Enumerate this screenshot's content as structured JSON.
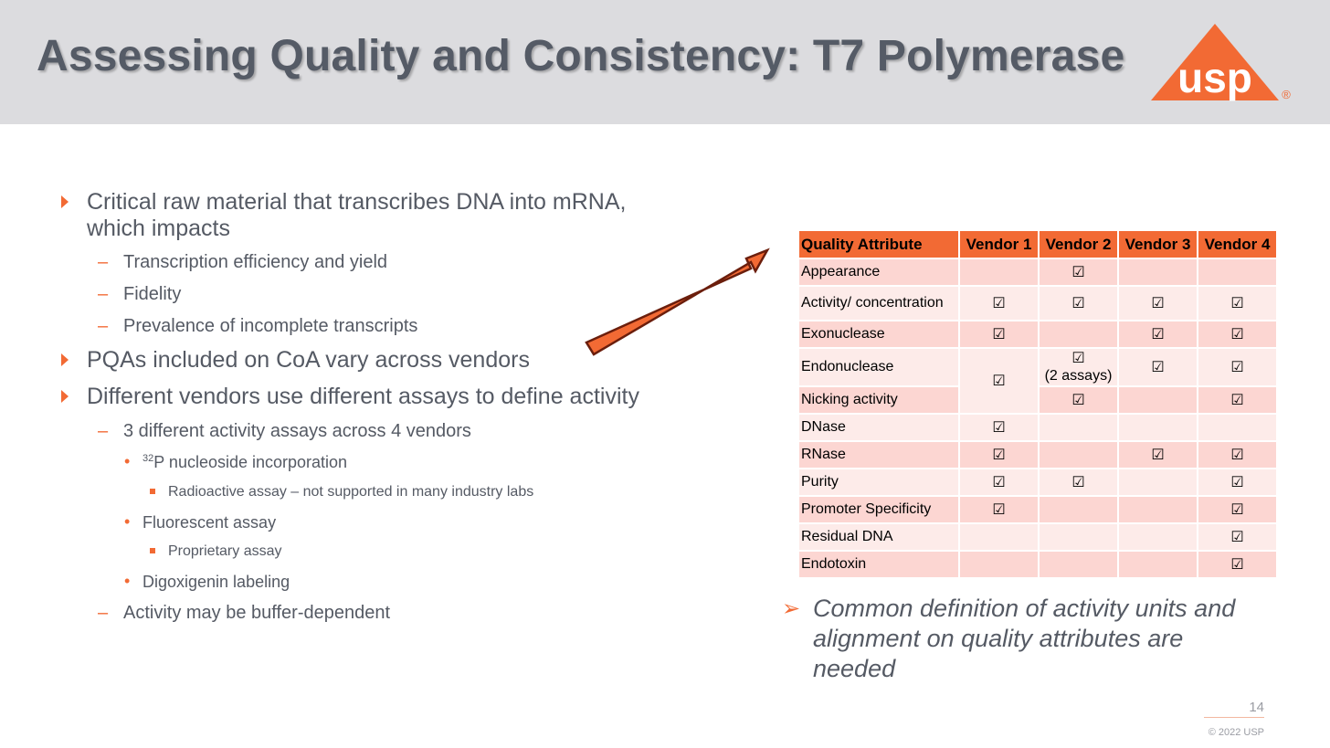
{
  "header": {
    "title": "Assessing Quality and Consistency: T7 Polymerase",
    "logo_text": "usp",
    "logo_mark": "®"
  },
  "bullets": {
    "b1_line1": "Critical raw material that transcribes DNA into mRNA,",
    "b1_line2": "which impacts",
    "b1_sub": [
      "Transcription efficiency and yield",
      "Fidelity",
      "Prevalence of incomplete transcripts"
    ],
    "b2": "PQAs included on CoA vary across vendors",
    "b3": "Different vendors use different assays to define activity",
    "b3_sub1": "3 different activity assays across 4 vendors",
    "assay1_sup": "32",
    "assay1_text": "P nucleoside incorporation",
    "assay1_note": "Radioactive assay – not supported in many industry labs",
    "assay2": "Fluorescent assay",
    "assay2_note": "Proprietary assay",
    "assay3": "Digoxigenin labeling",
    "b3_sub2": "Activity may be buffer-dependent",
    "dash": "–",
    "dot": "•"
  },
  "table": {
    "headers": [
      "Quality Attribute",
      "Vendor 1",
      "Vendor 2",
      "Vendor 3",
      "Vendor 4"
    ],
    "check": "☑",
    "two_assays": "(2 assays)",
    "rows": [
      "Appearance",
      "Activity/ concentration",
      "Exonuclease",
      "Endonuclease",
      "Nicking activity",
      "DNase",
      "RNase",
      "Purity",
      "Promoter Specificity",
      "Residual DNA",
      "Endotoxin"
    ]
  },
  "callout": {
    "marker": "➢",
    "text": "Common definition of activity units and alignment on quality attributes are needed"
  },
  "footer": {
    "page": "14",
    "copyright": "© 2022 USP"
  },
  "colors": {
    "accent": "#f26a34",
    "header_bg": "#dcdcdf",
    "row_odd": "#fcd6d2",
    "row_even": "#fdebe9"
  }
}
